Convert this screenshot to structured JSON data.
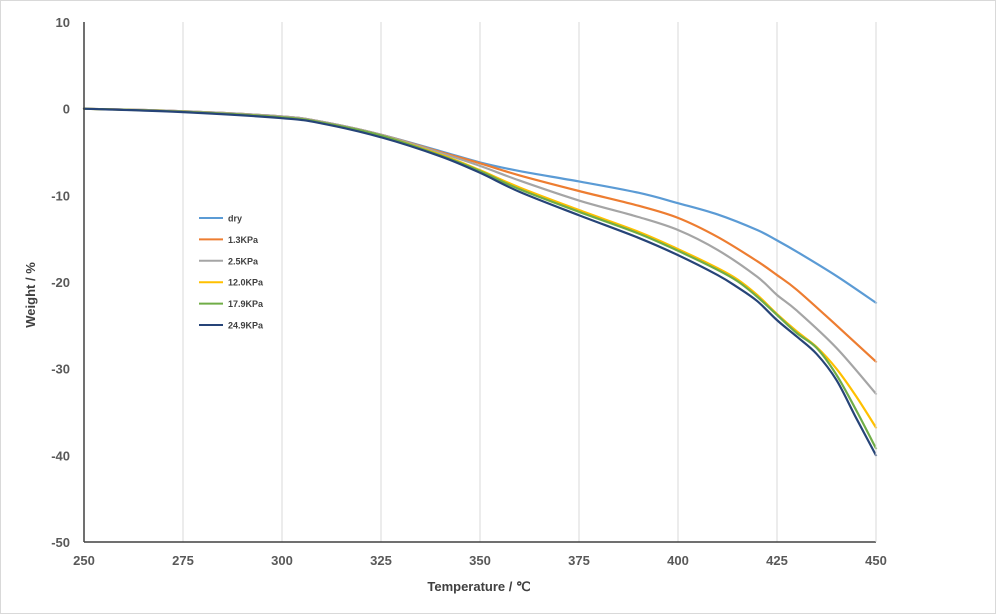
{
  "chart_data": {
    "type": "line",
    "title": "",
    "xlabel": "Temperature / ℃",
    "ylabel": "Weight / %",
    "xlim": [
      250,
      450
    ],
    "ylim": [
      -50,
      10
    ],
    "xticks": [
      250,
      275,
      300,
      325,
      350,
      375,
      400,
      425,
      450
    ],
    "yticks": [
      10,
      0,
      -10,
      -20,
      -30,
      -40,
      -50
    ],
    "grid": "vertical",
    "legend_position": "left",
    "series": [
      {
        "name": "dry",
        "color": "#5b9bd5",
        "points": [
          [
            250,
            0
          ],
          [
            275,
            -0.3
          ],
          [
            300,
            -0.9
          ],
          [
            310,
            -1.5
          ],
          [
            325,
            -3.0
          ],
          [
            340,
            -4.9
          ],
          [
            350,
            -6.2
          ],
          [
            360,
            -7.2
          ],
          [
            375,
            -8.4
          ],
          [
            390,
            -9.7
          ],
          [
            400,
            -10.9
          ],
          [
            410,
            -12.2
          ],
          [
            420,
            -14.0
          ],
          [
            425,
            -15.2
          ],
          [
            430,
            -16.5
          ],
          [
            440,
            -19.3
          ],
          [
            450,
            -22.4
          ]
        ]
      },
      {
        "name": "1.3KPa",
        "color": "#ed7d31",
        "points": [
          [
            250,
            0
          ],
          [
            275,
            -0.3
          ],
          [
            300,
            -0.9
          ],
          [
            310,
            -1.5
          ],
          [
            325,
            -3.0
          ],
          [
            340,
            -5.0
          ],
          [
            350,
            -6.3
          ],
          [
            360,
            -7.7
          ],
          [
            375,
            -9.5
          ],
          [
            390,
            -11.2
          ],
          [
            400,
            -12.6
          ],
          [
            410,
            -14.8
          ],
          [
            420,
            -17.6
          ],
          [
            425,
            -19.2
          ],
          [
            430,
            -20.9
          ],
          [
            440,
            -25.0
          ],
          [
            450,
            -29.2
          ]
        ]
      },
      {
        "name": "2.5KPa",
        "color": "#a5a5a5",
        "points": [
          [
            250,
            0
          ],
          [
            275,
            -0.3
          ],
          [
            300,
            -0.9
          ],
          [
            310,
            -1.5
          ],
          [
            325,
            -3.0
          ],
          [
            340,
            -5.1
          ],
          [
            350,
            -6.6
          ],
          [
            360,
            -8.3
          ],
          [
            375,
            -10.6
          ],
          [
            390,
            -12.5
          ],
          [
            400,
            -14.0
          ],
          [
            410,
            -16.3
          ],
          [
            420,
            -19.4
          ],
          [
            425,
            -21.5
          ],
          [
            430,
            -23.3
          ],
          [
            440,
            -27.6
          ],
          [
            450,
            -32.9
          ]
        ]
      },
      {
        "name": "12.0KPa",
        "color": "#ffc000",
        "points": [
          [
            250,
            0
          ],
          [
            275,
            -0.35
          ],
          [
            300,
            -1.0
          ],
          [
            310,
            -1.6
          ],
          [
            325,
            -3.1
          ],
          [
            340,
            -5.3
          ],
          [
            350,
            -7.1
          ],
          [
            360,
            -9.1
          ],
          [
            375,
            -11.7
          ],
          [
            390,
            -14.2
          ],
          [
            400,
            -16.2
          ],
          [
            410,
            -18.4
          ],
          [
            415,
            -19.7
          ],
          [
            420,
            -21.5
          ],
          [
            425,
            -23.7
          ],
          [
            430,
            -25.7
          ],
          [
            435,
            -27.5
          ],
          [
            440,
            -30.0
          ],
          [
            445,
            -33.2
          ],
          [
            450,
            -36.8
          ]
        ]
      },
      {
        "name": "17.9KPa",
        "color": "#70ad47",
        "points": [
          [
            250,
            0
          ],
          [
            275,
            -0.35
          ],
          [
            300,
            -1.0
          ],
          [
            310,
            -1.6
          ],
          [
            325,
            -3.1
          ],
          [
            340,
            -5.4
          ],
          [
            350,
            -7.2
          ],
          [
            360,
            -9.3
          ],
          [
            375,
            -11.9
          ],
          [
            390,
            -14.4
          ],
          [
            400,
            -16.4
          ],
          [
            410,
            -18.6
          ],
          [
            415,
            -19.9
          ],
          [
            420,
            -21.7
          ],
          [
            425,
            -23.8
          ],
          [
            430,
            -25.9
          ],
          [
            435,
            -27.6
          ],
          [
            440,
            -30.7
          ],
          [
            445,
            -34.8
          ],
          [
            450,
            -39.2
          ]
        ]
      },
      {
        "name": "24.9KPa",
        "color": "#264478",
        "points": [
          [
            250,
            0
          ],
          [
            275,
            -0.4
          ],
          [
            300,
            -1.1
          ],
          [
            310,
            -1.7
          ],
          [
            325,
            -3.3
          ],
          [
            340,
            -5.5
          ],
          [
            350,
            -7.4
          ],
          [
            360,
            -9.6
          ],
          [
            375,
            -12.3
          ],
          [
            390,
            -14.9
          ],
          [
            400,
            -16.9
          ],
          [
            410,
            -19.2
          ],
          [
            415,
            -20.6
          ],
          [
            420,
            -22.2
          ],
          [
            425,
            -24.4
          ],
          [
            430,
            -26.3
          ],
          [
            435,
            -28.3
          ],
          [
            440,
            -31.3
          ],
          [
            445,
            -35.7
          ],
          [
            450,
            -40.0
          ]
        ]
      }
    ]
  }
}
